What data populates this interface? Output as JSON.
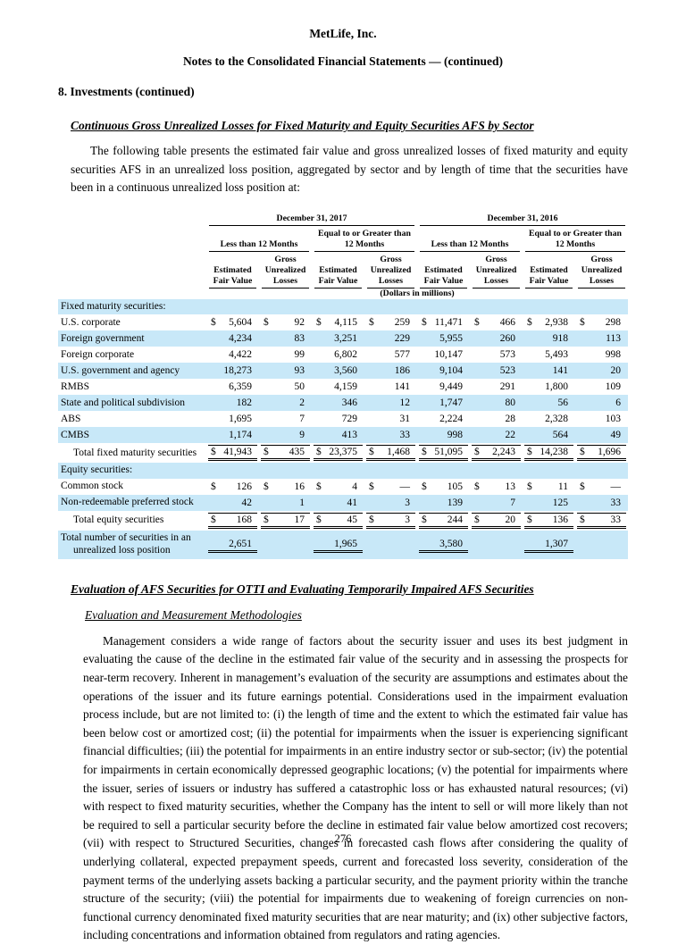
{
  "header": {
    "company": "MetLife, Inc.",
    "subtitle": "Notes to the Consolidated Financial Statements — (continued)",
    "section": "8. Investments (continued)"
  },
  "sections": {
    "topic_heading": "Continuous Gross Unrealized Losses for Fixed Maturity and Equity Securities AFS by Sector",
    "intro": "The following table presents the estimated fair value and gross unrealized losses of fixed maturity and equity securities AFS in an unrealized loss position, aggregated by sector and by length of time that the securities have been in a continuous unrealized loss position at:",
    "eval_heading": "Evaluation of AFS Securities for OTTI and Evaluating Temporarily Impaired AFS Securities",
    "method_heading": "Evaluation and Measurement Methodologies",
    "body_paragraph": "Management considers a wide range of factors about the security issuer and uses its best judgment in evaluating the cause of the decline in the estimated fair value of the security and in assessing the prospects for near-term recovery. Inherent in management’s evaluation of the security are assumptions and estimates about the operations of the issuer and its future earnings potential. Considerations used in the impairment evaluation process include, but are not limited to: (i) the length of time and the extent to which the estimated fair value has been below cost or amortized cost; (ii) the potential for impairments when the issuer is experiencing significant financial difficulties; (iii) the potential for impairments in an entire industry sector or sub-sector; (iv) the potential for impairments in certain economically depressed geographic locations; (v) the potential for impairments where the issuer, series of issuers or industry has suffered a catastrophic loss or has exhausted natural resources; (vi) with respect to fixed maturity securities, whether the Company has the intent to sell or will more likely than not be required to sell a particular security before the decline in estimated fair value below amortized cost recovers; (vii) with respect to Structured Securities, changes in forecasted cash flows after considering the quality of underlying collateral, expected prepayment speeds, current and forecasted loss severity, consideration of the payment terms of the underlying assets backing a particular security, and the payment priority within the tranche structure of the security; (viii) the potential for impairments due to weakening of foreign currencies on non-functional currency denominated fixed maturity securities that are near maturity; and (ix) other subjective factors, including concentrations and information obtained from regulators and rating agencies."
  },
  "footer": {
    "page_number": "276"
  },
  "table": {
    "years": [
      "December 31, 2017",
      "December 31, 2016"
    ],
    "periods": [
      "Less than 12 Months",
      "Equal to or Greater than 12 Months",
      "Less than 12 Months",
      "Equal to or Greater than 12 Months"
    ],
    "value_headers": [
      "Estimated Fair Value",
      "Gross Unrealized Losses",
      "Estimated Fair Value",
      "Gross Unrealized Losses",
      "Estimated Fair Value",
      "Gross Unrealized Losses",
      "Estimated Fair Value",
      "Gross Unrealized Losses"
    ],
    "dollars_note": "(Dollars in millions)",
    "rows": [
      {
        "label": "Fixed maturity securities:",
        "type": "section",
        "striped": true
      },
      {
        "label": "U.S. corporate",
        "dollar": true,
        "striped": false,
        "values": [
          "5,604",
          "92",
          "4,115",
          "259",
          "11,471",
          "466",
          "2,938",
          "298"
        ]
      },
      {
        "label": "Foreign government",
        "dollar": false,
        "striped": true,
        "values": [
          "4,234",
          "83",
          "3,251",
          "229",
          "5,955",
          "260",
          "918",
          "113"
        ]
      },
      {
        "label": "Foreign corporate",
        "dollar": false,
        "striped": false,
        "values": [
          "4,422",
          "99",
          "6,802",
          "577",
          "10,147",
          "573",
          "5,493",
          "998"
        ]
      },
      {
        "label": "U.S. government and agency",
        "dollar": false,
        "striped": true,
        "values": [
          "18,273",
          "93",
          "3,560",
          "186",
          "9,104",
          "523",
          "141",
          "20"
        ]
      },
      {
        "label": "RMBS",
        "dollar": false,
        "striped": false,
        "values": [
          "6,359",
          "50",
          "4,159",
          "141",
          "9,449",
          "291",
          "1,800",
          "109"
        ]
      },
      {
        "label": "State and political subdivision",
        "dollar": false,
        "striped": true,
        "values": [
          "182",
          "2",
          "346",
          "12",
          "1,747",
          "80",
          "56",
          "6"
        ]
      },
      {
        "label": "ABS",
        "dollar": false,
        "striped": false,
        "values": [
          "1,695",
          "7",
          "729",
          "31",
          "2,224",
          "28",
          "2,328",
          "103"
        ]
      },
      {
        "label": "CMBS",
        "dollar": false,
        "striped": true,
        "values": [
          "1,174",
          "9",
          "413",
          "33",
          "998",
          "22",
          "564",
          "49"
        ]
      },
      {
        "label": "Total fixed maturity securities",
        "type": "total",
        "indent": true,
        "dollar": true,
        "striped": false,
        "values": [
          "41,943",
          "435",
          "23,375",
          "1,468",
          "51,095",
          "2,243",
          "14,238",
          "1,696"
        ]
      },
      {
        "label": "Equity securities:",
        "type": "section",
        "striped": true
      },
      {
        "label": "Common stock",
        "dollar": true,
        "striped": false,
        "values": [
          "126",
          "16",
          "4",
          "—",
          "105",
          "13",
          "11",
          "—"
        ]
      },
      {
        "label": "Non-redeemable preferred stock",
        "dollar": false,
        "striped": true,
        "values": [
          "42",
          "1",
          "41",
          "3",
          "139",
          "7",
          "125",
          "33"
        ]
      },
      {
        "label": "Total equity securities",
        "type": "total",
        "indent": true,
        "dollar": true,
        "striped": false,
        "values": [
          "168",
          "17",
          "45",
          "3",
          "244",
          "20",
          "136",
          "33"
        ]
      },
      {
        "label": "Total number of securities in an unrealized loss position",
        "type": "count",
        "dollar": false,
        "striped": true,
        "values": [
          "2,651",
          "",
          "1,965",
          "",
          "3,580",
          "",
          "1,307",
          ""
        ]
      }
    ]
  }
}
